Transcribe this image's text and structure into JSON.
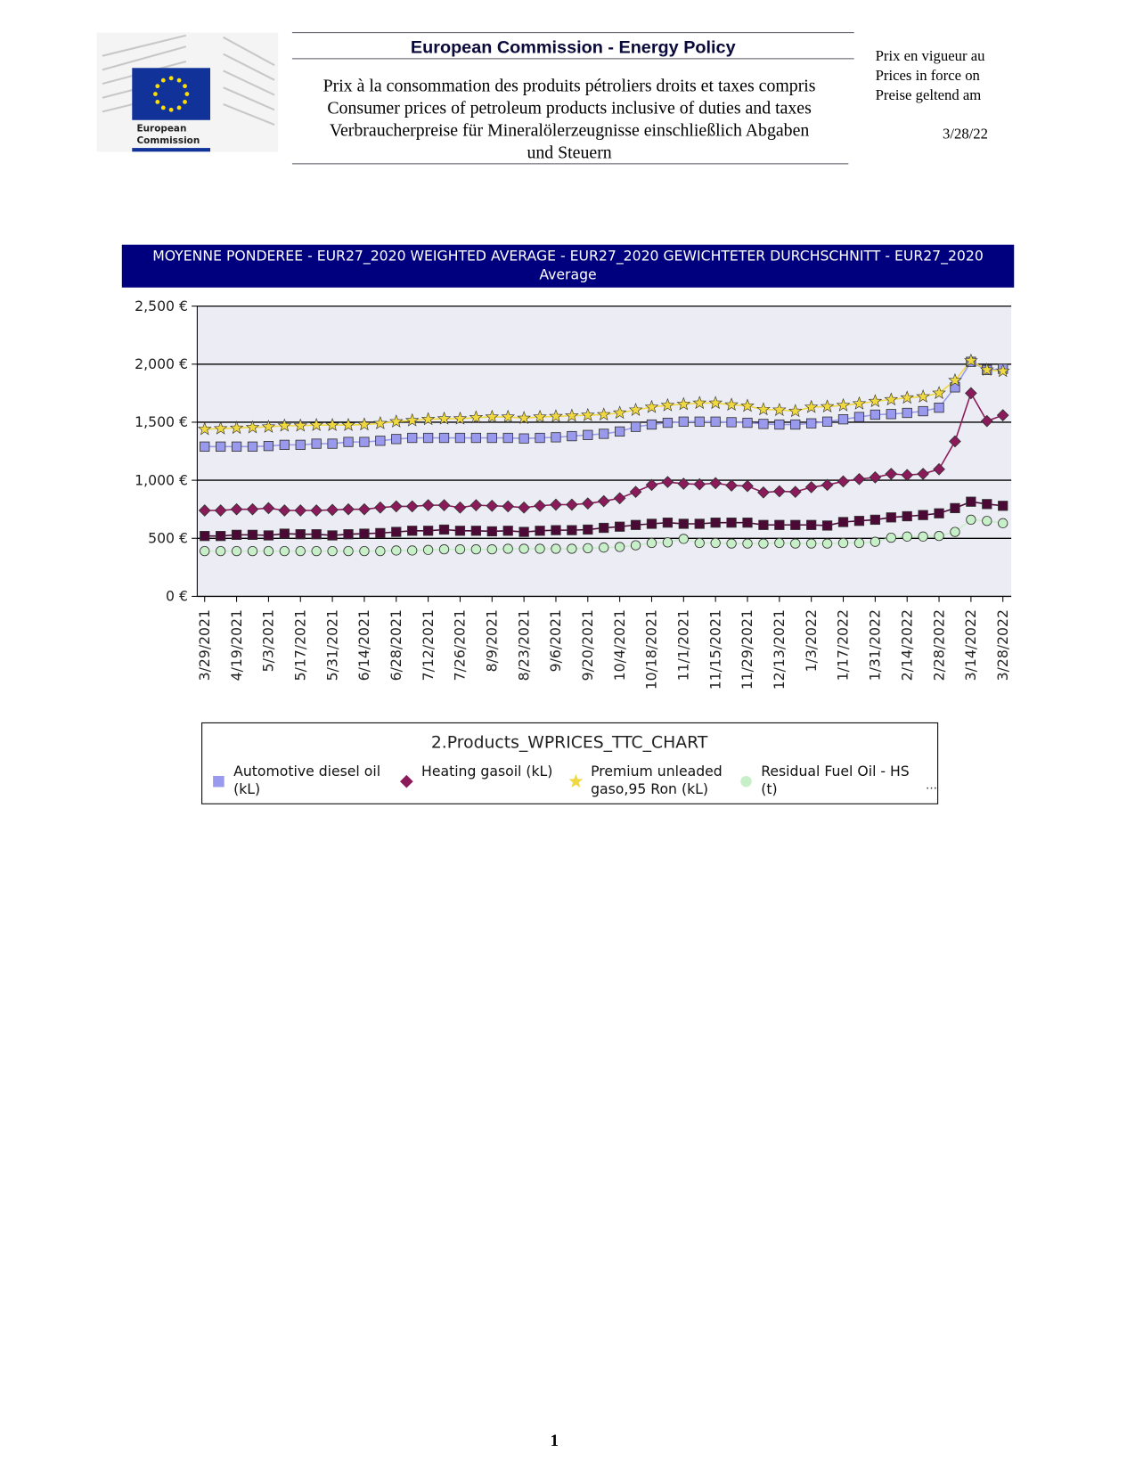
{
  "header": {
    "title": "European Commission - Energy Policy",
    "lines": [
      "Prix à la consommation des produits pétroliers droits et taxes compris",
      "Consumer prices of petroleum products inclusive of duties and taxes",
      "Verbraucherpreise für Mineralölerzeugnisse einschließlich Abgaben",
      "und Steuern"
    ],
    "logo": [
      "European",
      "Commission"
    ],
    "right_lines": [
      "Prix en vigueur au",
      "Prices in force on",
      "Preise geltend am"
    ],
    "date": "3/28/22"
  },
  "chart_data": {
    "type": "line",
    "title": "MOYENNE PONDEREE - EUR27_2020 WEIGHTED AVERAGE - EUR27_2020 GEWICHTETER DURCHSCHNITT - EUR27_2020 Average",
    "legend_title": "2.Products_WPRICES_TTC_CHART",
    "legend_more": "...",
    "categories": [
      "3/29/2021",
      null,
      "4/19/2021",
      null,
      "5/3/2021",
      null,
      "5/17/2021",
      null,
      "5/31/2021",
      null,
      "6/14/2021",
      null,
      "6/28/2021",
      null,
      "7/12/2021",
      null,
      "7/26/2021",
      null,
      "8/9/2021",
      null,
      "8/23/2021",
      null,
      "9/6/2021",
      null,
      "9/20/2021",
      null,
      "10/4/2021",
      null,
      "10/18/2021",
      null,
      "11/1/2021",
      null,
      "11/15/2021",
      null,
      "11/29/2021",
      null,
      "12/13/2021",
      null,
      "1/3/2022",
      null,
      "1/17/2022",
      null,
      "1/31/2022",
      null,
      "2/14/2022",
      null,
      "2/28/2022",
      null,
      "3/14/2022",
      null,
      "3/28/2022"
    ],
    "series": [
      {
        "name": "Automotive diesel oil (kL)",
        "color": "#9999ee",
        "marker": "square",
        "values": [
          1290,
          1290,
          1290,
          1290,
          1295,
          1305,
          1305,
          1315,
          1315,
          1330,
          1330,
          1340,
          1355,
          1365,
          1365,
          1365,
          1365,
          1365,
          1365,
          1365,
          1360,
          1365,
          1370,
          1380,
          1390,
          1400,
          1420,
          1460,
          1480,
          1495,
          1505,
          1505,
          1505,
          1500,
          1495,
          1485,
          1480,
          1480,
          1490,
          1505,
          1525,
          1545,
          1565,
          1570,
          1580,
          1595,
          1625,
          1800,
          2020,
          1950,
          1960
        ]
      },
      {
        "name": "Heating gasoil (kL)",
        "color": "#8b1a5a",
        "marker": "diamond",
        "values": [
          740,
          740,
          750,
          750,
          760,
          740,
          740,
          740,
          745,
          750,
          750,
          765,
          775,
          775,
          785,
          785,
          765,
          785,
          780,
          775,
          765,
          780,
          790,
          790,
          800,
          820,
          845,
          900,
          960,
          985,
          970,
          965,
          975,
          955,
          950,
          895,
          905,
          900,
          940,
          960,
          990,
          1010,
          1025,
          1055,
          1045,
          1055,
          1095,
          1335,
          1750,
          1510,
          1560
        ]
      },
      {
        "name": "Premium unleaded gaso,95 Ron (kL)",
        "color": "#f0d840",
        "marker": "star",
        "values": [
          1440,
          1445,
          1450,
          1455,
          1460,
          1470,
          1470,
          1475,
          1475,
          1475,
          1480,
          1490,
          1505,
          1515,
          1525,
          1530,
          1530,
          1540,
          1545,
          1545,
          1535,
          1545,
          1550,
          1555,
          1560,
          1565,
          1580,
          1605,
          1630,
          1645,
          1655,
          1665,
          1665,
          1650,
          1640,
          1610,
          1605,
          1595,
          1630,
          1635,
          1645,
          1660,
          1680,
          1695,
          1710,
          1720,
          1750,
          1860,
          2030,
          1950,
          1940
        ]
      },
      {
        "name": "Residual Fuel Oil - HS (t)",
        "color": "#c8f0c8",
        "marker": "circle",
        "values": [
          390,
          390,
          390,
          390,
          390,
          390,
          390,
          390,
          390,
          390,
          390,
          390,
          395,
          395,
          400,
          405,
          405,
          405,
          405,
          410,
          410,
          410,
          410,
          410,
          415,
          420,
          425,
          440,
          460,
          465,
          495,
          460,
          460,
          455,
          455,
          455,
          460,
          455,
          455,
          455,
          460,
          460,
          470,
          505,
          515,
          515,
          520,
          555,
          660,
          650,
          630
        ]
      },
      {
        "color": "#4a0a35",
        "marker": "square",
        "values": [
          520,
          520,
          530,
          530,
          525,
          540,
          535,
          535,
          525,
          535,
          540,
          545,
          555,
          565,
          565,
          575,
          565,
          565,
          560,
          565,
          555,
          565,
          570,
          570,
          575,
          590,
          600,
          615,
          625,
          635,
          625,
          625,
          635,
          635,
          635,
          615,
          615,
          615,
          615,
          610,
          640,
          650,
          660,
          680,
          690,
          700,
          715,
          760,
          815,
          795,
          780
        ]
      }
    ],
    "ylim": [
      0,
      2500
    ],
    "yticks": [
      {
        "value": 0,
        "label": "0 €"
      },
      {
        "value": 500,
        "label": "500 €"
      },
      {
        "value": 1000,
        "label": "1,000 €"
      },
      {
        "value": 1500,
        "label": "1,500 €"
      },
      {
        "value": 2000,
        "label": "2,000 €"
      },
      {
        "value": 2500,
        "label": "2,500 €"
      }
    ],
    "grid": true
  },
  "footer": {
    "page": "1"
  }
}
